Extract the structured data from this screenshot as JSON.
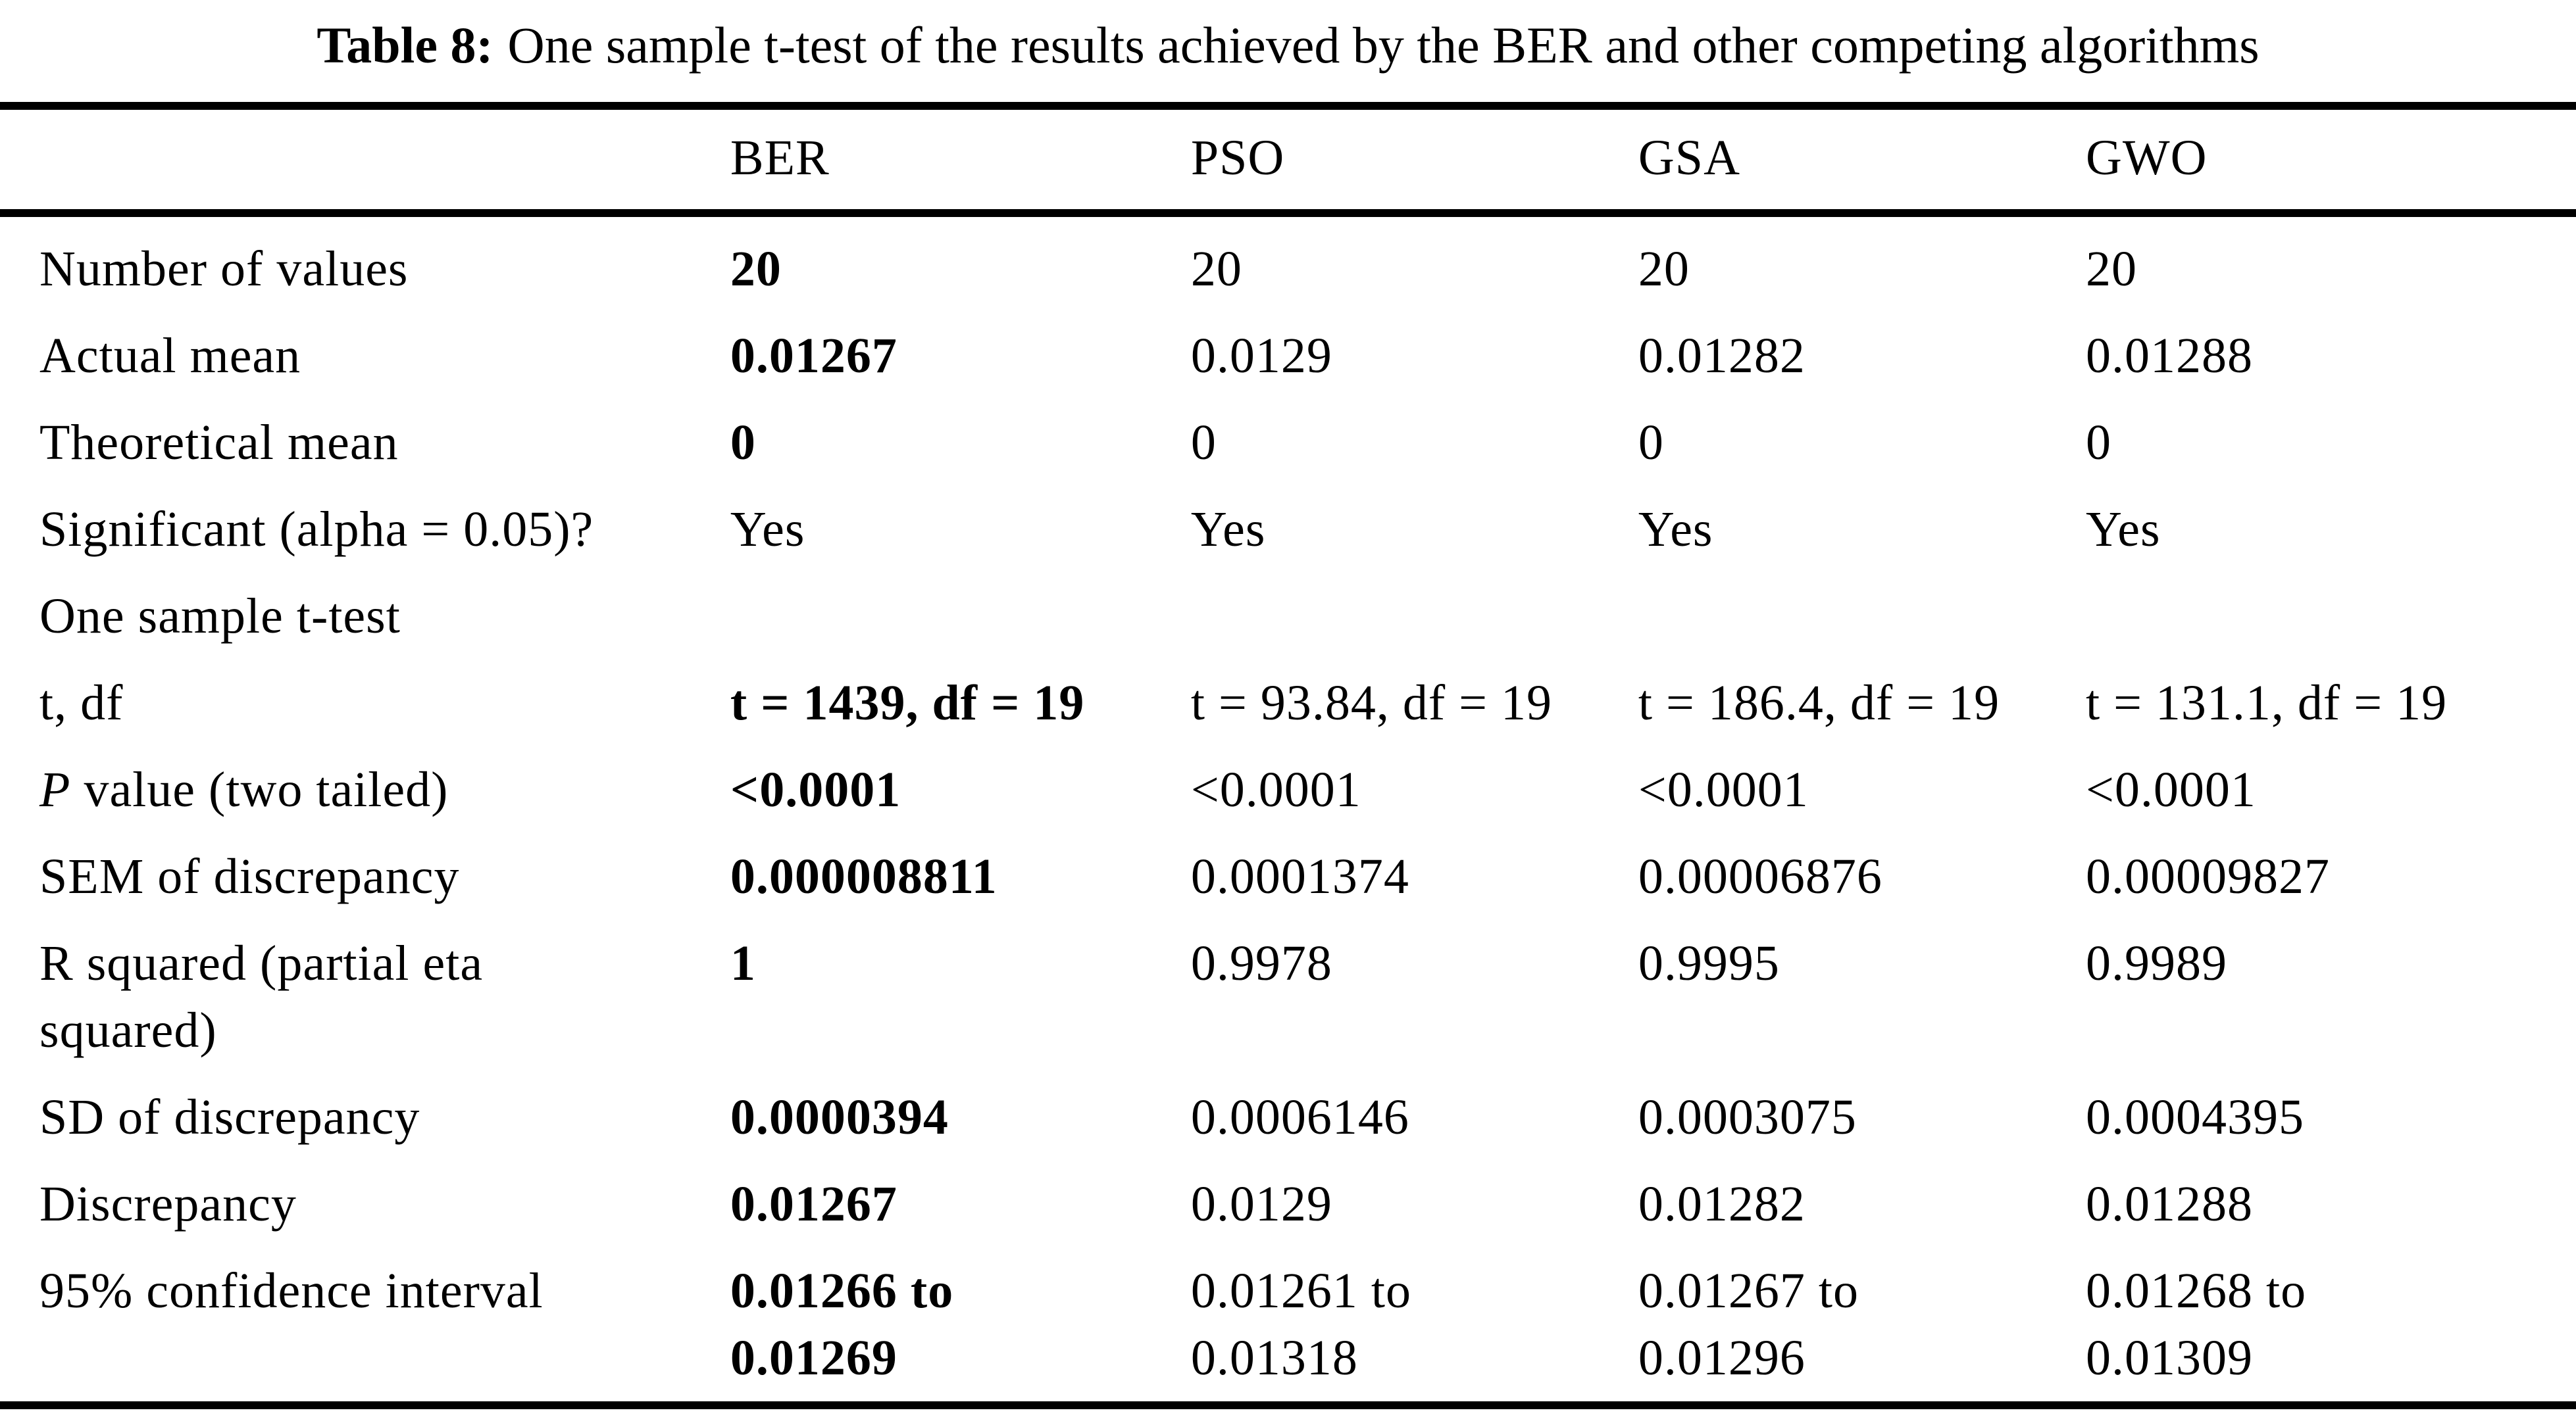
{
  "caption": {
    "label": "Table 8:",
    "text": "One sample t-test of the results achieved by the BER and other competing algorithms"
  },
  "colors": {
    "text": "#000000",
    "background": "#ffffff",
    "rule": "#000000"
  },
  "table": {
    "header": [
      "BER",
      "PSO",
      "GSA",
      "GWO"
    ],
    "rows": [
      {
        "label": "Number of values",
        "values": [
          "20",
          "20",
          "20",
          "20"
        ],
        "ber_bold": true
      },
      {
        "label": "Actual mean",
        "values": [
          "0.01267",
          "0.0129",
          "0.01282",
          "0.01288"
        ],
        "ber_bold": true
      },
      {
        "label": "Theoretical mean",
        "values": [
          "0",
          "0",
          "0",
          "0"
        ],
        "ber_bold": true
      },
      {
        "label": "Significant (alpha = 0.05)?",
        "values": [
          "Yes",
          "Yes",
          "Yes",
          "Yes"
        ],
        "ber_bold": false
      },
      {
        "label": "One sample t-test",
        "values": [
          "",
          "",
          "",
          ""
        ],
        "ber_bold": false,
        "section": true
      },
      {
        "label": "t, df",
        "values": [
          "t = 1439, df = 19",
          "t = 93.84, df = 19",
          "t = 186.4, df = 19",
          "t = 131.1, df = 19"
        ],
        "ber_bold": true
      },
      {
        "label_italic": "P",
        "label": " value (two tailed)",
        "values": [
          "<0.0001",
          "<0.0001",
          "<0.0001",
          "<0.0001"
        ],
        "ber_bold": true
      },
      {
        "label": "SEM of discrepancy",
        "values": [
          "0.000008811",
          "0.0001374",
          "0.00006876",
          "0.00009827"
        ],
        "ber_bold": true
      },
      {
        "label": "R squared (partial eta\nsquared)",
        "values": [
          "1",
          "0.9978",
          "0.9995",
          "0.9989"
        ],
        "ber_bold": true
      },
      {
        "label": "SD of discrepancy",
        "values": [
          "0.0000394",
          "0.0006146",
          "0.0003075",
          "0.0004395"
        ],
        "ber_bold": true
      },
      {
        "label": "Discrepancy",
        "values": [
          "0.01267",
          "0.0129",
          "0.01282",
          "0.01288"
        ],
        "ber_bold": true
      },
      {
        "label": "95% confidence interval",
        "values": [
          "0.01266 to\n0.01269",
          "0.01261 to\n0.01318",
          "0.01267 to\n0.01296",
          "0.01268 to\n0.01309"
        ],
        "ber_bold": true
      }
    ]
  }
}
